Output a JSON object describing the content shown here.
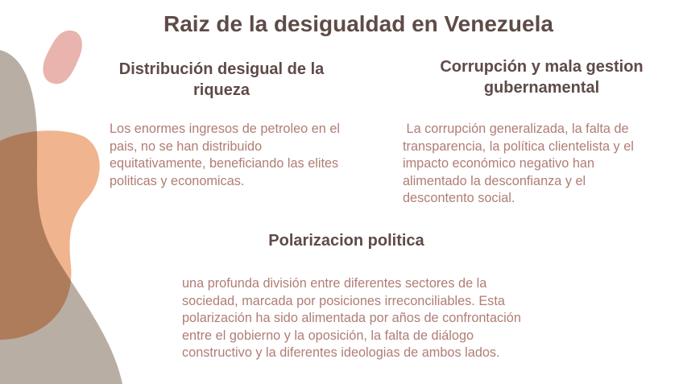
{
  "title": "Raiz de la desigualdad en Venezuela",
  "sections": [
    {
      "heading": "Distribución desigual de la riqueza",
      "body": "Los enormes ingresos de petroleo en el pais, no se han distribuido equitativamente, beneficiando  las elites politicas y economicas."
    },
    {
      "heading": "Corrupción y mala gestion gubernamental",
      "body": " La corrupción generalizada, la falta de transparencia, la política clientelista y el impacto económico negativo han alimentado la desconfianza y el descontento social."
    },
    {
      "heading": "Polarizacion politica",
      "body": "una profunda división entre diferentes sectores de la sociedad, marcada por posiciones irreconciliables. Esta polarización ha sido alimentada por años de confrontación entre el gobierno y la oposición, la falta de diálogo constructivo y la diferentes ideologias de ambos lados."
    }
  ],
  "colors": {
    "heading": "#5e4b48",
    "body": "#b07d75",
    "blob_gray": "#b9aea3",
    "blob_orange": "#f0b48e",
    "blob_pink": "#e8b4ad"
  }
}
